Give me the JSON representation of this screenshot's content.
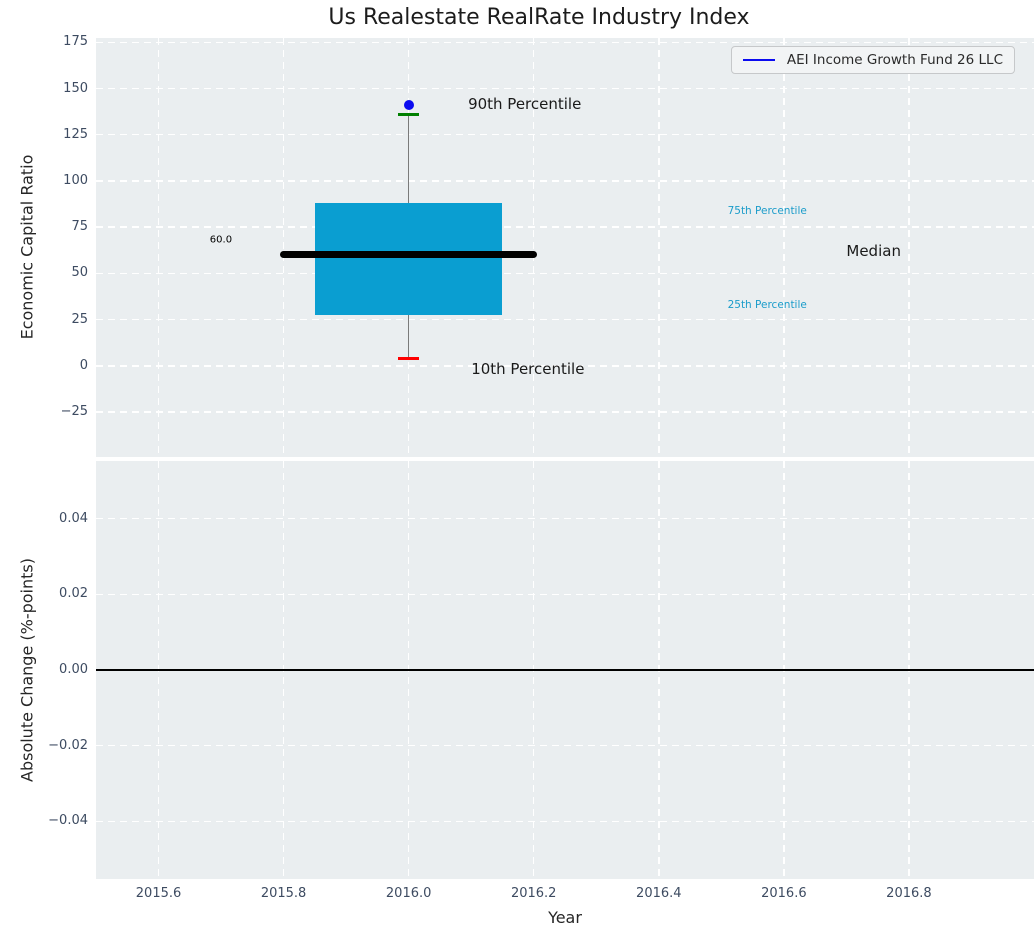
{
  "title": "Us Realestate RealRate Industry Index",
  "colors": {
    "axes_background": "#eaeef0",
    "grid": "#ffffff",
    "tick_label": "#3d4b61",
    "box_fill": "#0a9ed1",
    "median_line": "#000000",
    "whisker": "#7a7a7a",
    "p90_cap": "#008000",
    "p10_cap": "#ff0000",
    "company_marker": "#0b0bf0",
    "percentile_label": "#1b9cca",
    "legend_line": "#0b0bf0"
  },
  "chart_data": [
    {
      "type": "box",
      "title": "Us Realestate RealRate Industry Index",
      "xlabel": "Year",
      "ylabel": "Economic Capital Ratio",
      "xlim": [
        2015.5,
        2017.0
      ],
      "ylim": [
        -49.2,
        177.3
      ],
      "grid": true,
      "x_ticks": [
        2015.6,
        2015.8,
        2016.0,
        2016.2,
        2016.4,
        2016.6,
        2016.8
      ],
      "x_tick_labels": [
        "2015.6",
        "2015.8",
        "2016.0",
        "2016.2",
        "2016.4",
        "2016.6",
        "2016.8"
      ],
      "y_ticks": [
        175,
        150,
        125,
        100,
        75,
        50,
        25,
        0,
        -25
      ],
      "y_tick_labels": [
        "175",
        "150",
        "125",
        "100",
        "75",
        "50",
        "25",
        "0",
        "−25"
      ],
      "legend": {
        "position": "upper right",
        "entries": [
          {
            "label": "AEI Income Growth Fund 26 LLC",
            "color": "#0b0bf0"
          }
        ]
      },
      "series": {
        "name": "AEI Income Growth Fund 26 LLC",
        "x": 2016.0,
        "p10": 4,
        "p25": 27.5,
        "median": 60,
        "p75": 88,
        "p90": 136,
        "company_value": 141,
        "median_value_label": "60.0"
      },
      "annotations": [
        {
          "text": "90th Percentile",
          "x": 2016.095,
          "y": 141.5,
          "size": 15,
          "color": "#1a1a1a"
        },
        {
          "text": "10th Percentile",
          "x": 2016.1,
          "y": -1.5,
          "size": 15,
          "color": "#1a1a1a"
        },
        {
          "text": "75th Percentile",
          "x": 2016.51,
          "y": 84,
          "size": 10.5,
          "color": "#1b9cca"
        },
        {
          "text": "25th Percentile",
          "x": 2016.51,
          "y": 33,
          "size": 10.5,
          "color": "#1b9cca"
        },
        {
          "text": "Median",
          "x": 2016.7,
          "y": 62,
          "size": 15,
          "color": "#1a1a1a"
        },
        {
          "text": "60.0",
          "x": 2015.682,
          "y": 68,
          "size": 10,
          "color": "#000000"
        }
      ]
    },
    {
      "type": "line",
      "xlabel": "Year",
      "ylabel": "Absolute Change (%-points)",
      "xlim": [
        2015.5,
        2017.0
      ],
      "ylim": [
        -0.0552,
        0.0552
      ],
      "grid": true,
      "x_ticks": [
        2015.6,
        2015.8,
        2016.0,
        2016.2,
        2016.4,
        2016.6,
        2016.8
      ],
      "x_tick_labels": [
        "2015.6",
        "2015.8",
        "2016.0",
        "2016.2",
        "2016.4",
        "2016.6",
        "2016.8"
      ],
      "y_ticks": [
        0.04,
        0.02,
        0,
        -0.02,
        -0.04
      ],
      "y_tick_labels": [
        "0.04",
        "0.02",
        "0.00",
        "−0.02",
        "−0.04"
      ],
      "zero_line": 0.0,
      "series": []
    }
  ]
}
